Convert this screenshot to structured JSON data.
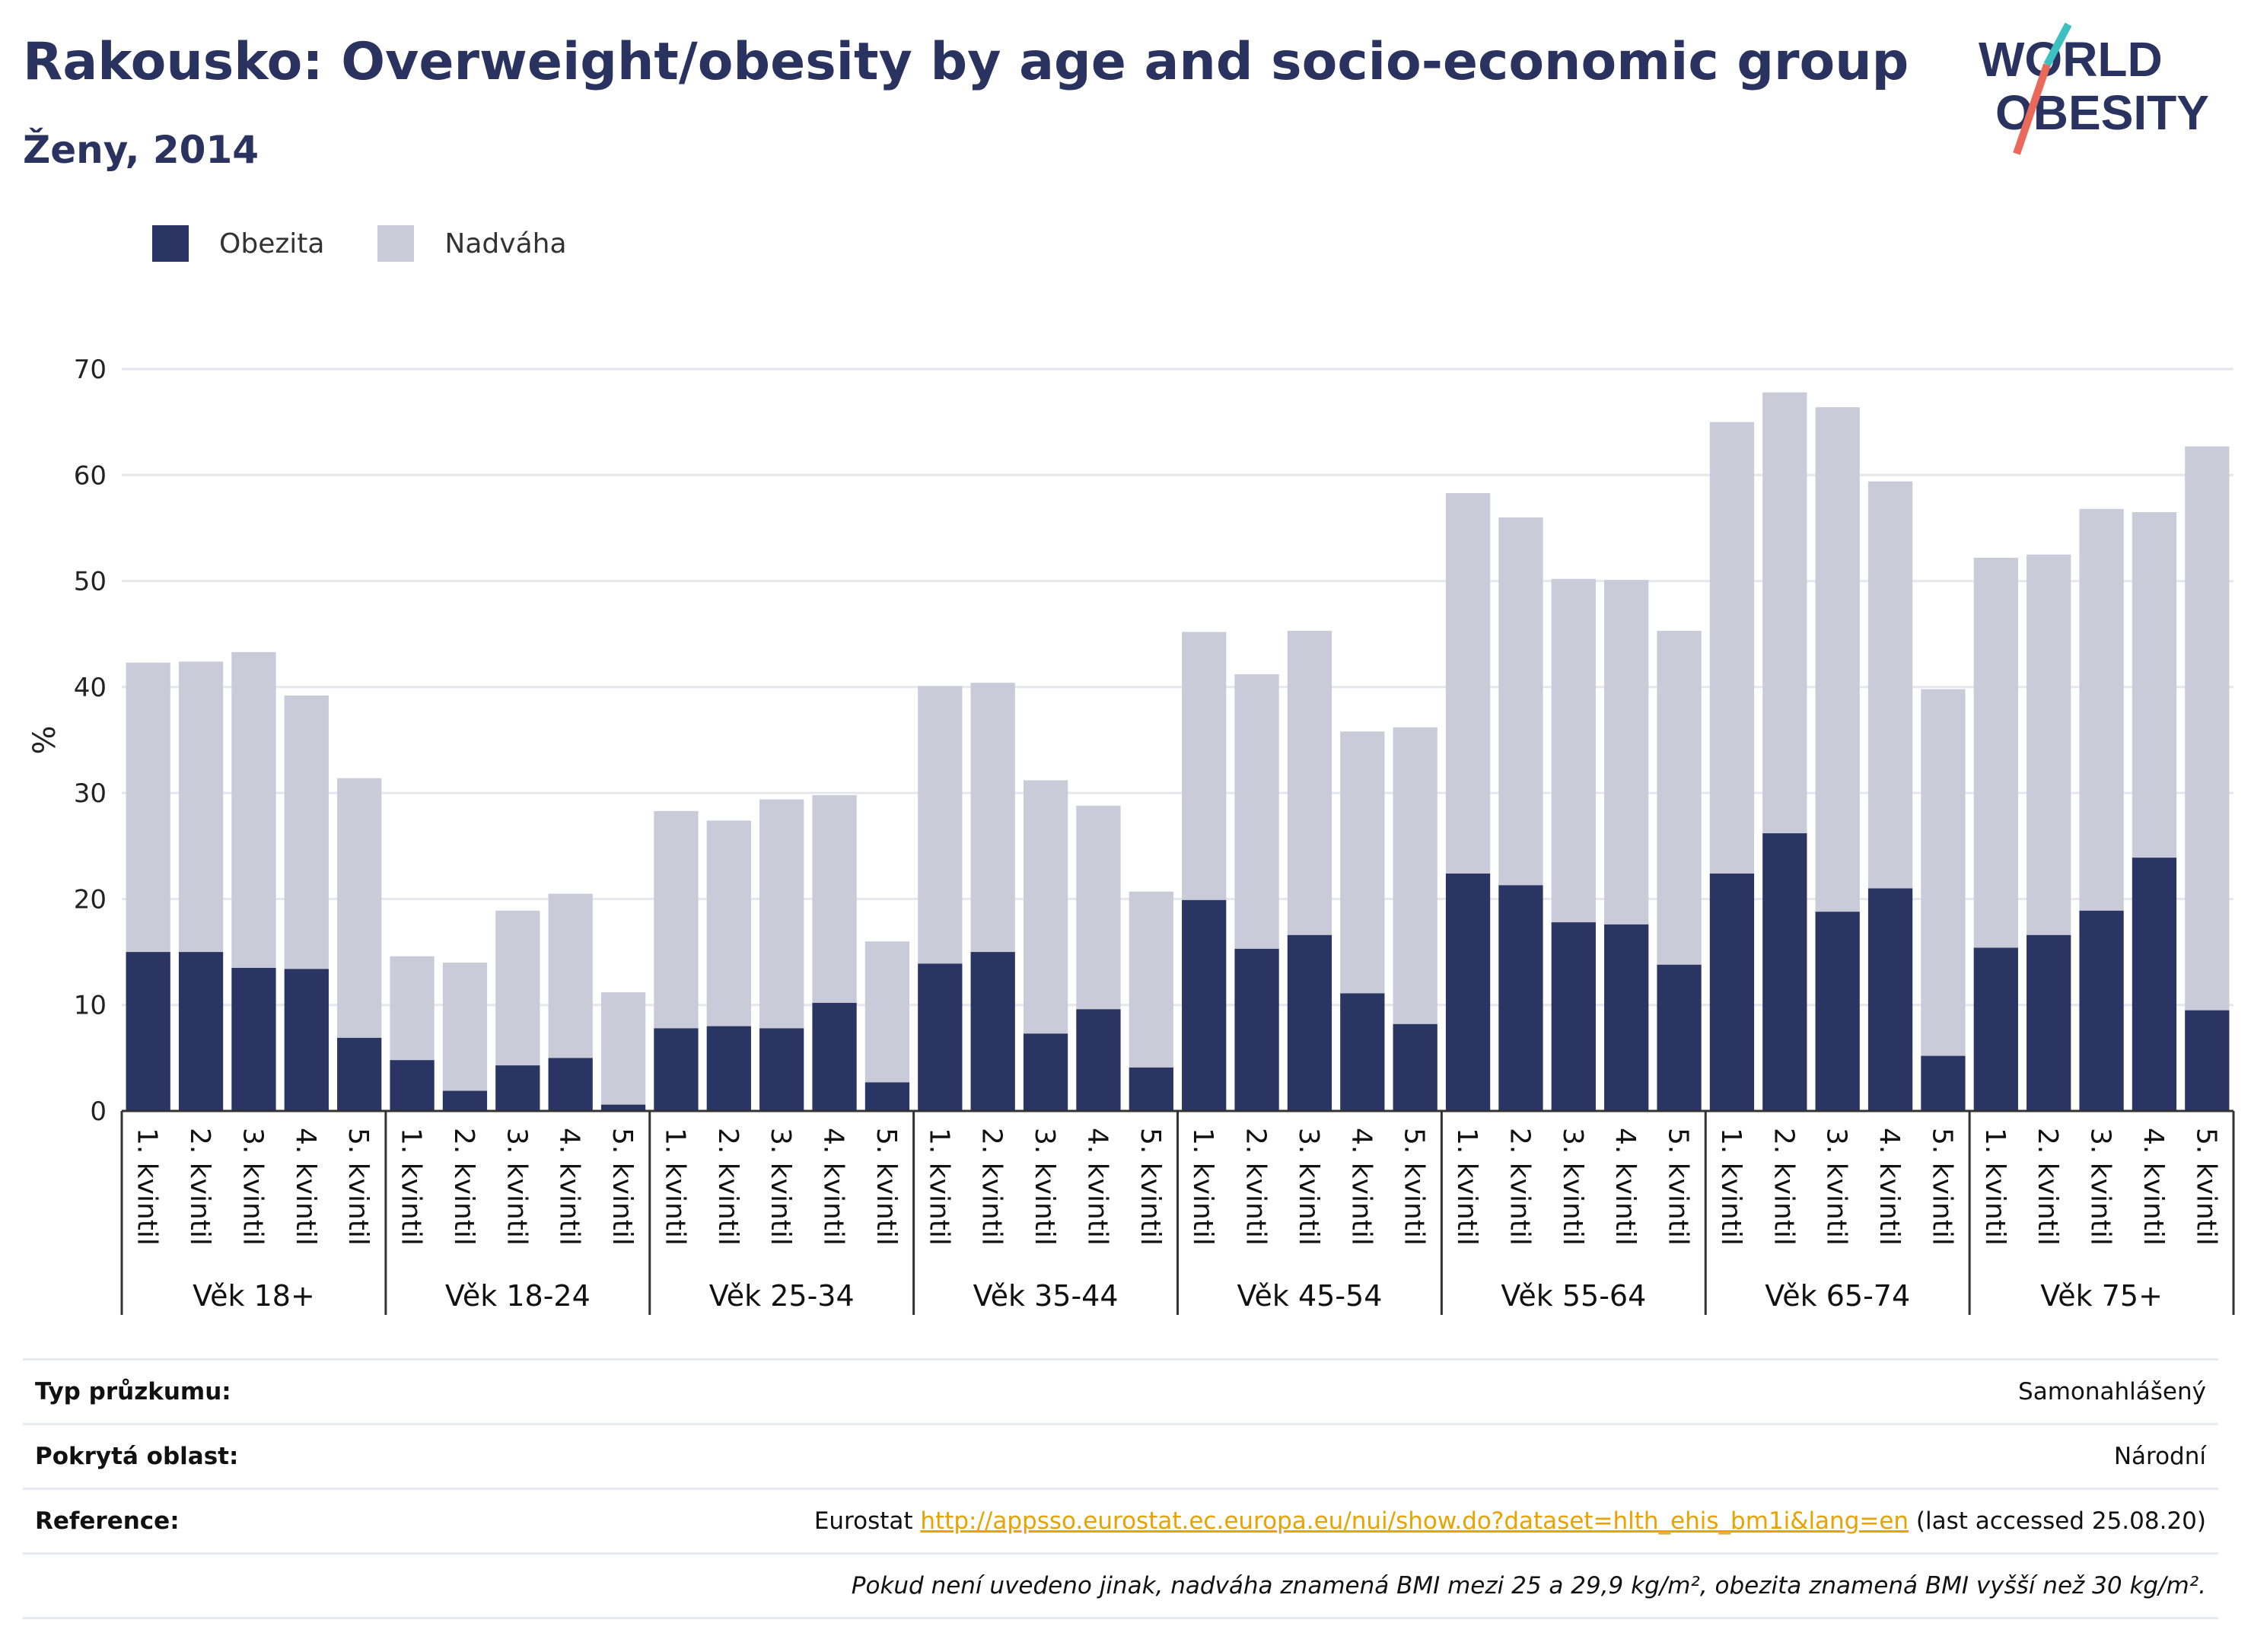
{
  "title": "Rakousko: Overweight/obesity by age and socio-economic group",
  "subtitle": "Ženy, 2014",
  "logo": {
    "line1": "WORLD",
    "line2": "OBESITY"
  },
  "colors": {
    "obesity": "#2a3563",
    "overweight": "#c9cbd8",
    "title": "#2a335f",
    "accent_teal": "#3cc1c0",
    "accent_red": "#e96a5a",
    "link": "#e8a300"
  },
  "legend": [
    {
      "label": "Obezita",
      "color": "#2a3563"
    },
    {
      "label": "Nadváha",
      "color": "#c9cbd8"
    }
  ],
  "chart_data": {
    "type": "bar",
    "stacked": true,
    "ylabel": "%",
    "ylim": [
      0,
      70
    ],
    "yticks": [
      0,
      10,
      20,
      30,
      40,
      50,
      60,
      70
    ],
    "grid": true,
    "legend_position": "top-left",
    "groups": [
      "Věk 18+",
      "Věk 18-24",
      "Věk 25-34",
      "Věk 35-44",
      "Věk 45-54",
      "Věk 55-64",
      "Věk 65-74",
      "Věk 75+"
    ],
    "categories": [
      "1. kvintil",
      "2. kvintil",
      "3. kvintil",
      "4. kvintil",
      "5. kvintil"
    ],
    "series": [
      {
        "name": "Obezita",
        "values": [
          [
            15.0,
            15.0,
            13.5,
            13.4,
            6.9
          ],
          [
            4.8,
            1.9,
            4.3,
            5.0,
            0.6
          ],
          [
            7.8,
            8.0,
            7.8,
            10.2,
            2.7
          ],
          [
            13.9,
            15.0,
            7.3,
            9.6,
            4.1
          ],
          [
            19.9,
            15.3,
            16.6,
            11.1,
            8.2
          ],
          [
            22.4,
            21.3,
            17.8,
            17.6,
            13.8
          ],
          [
            22.4,
            26.2,
            18.8,
            21.0,
            5.2
          ],
          [
            15.4,
            16.6,
            18.9,
            23.9,
            9.5
          ]
        ]
      },
      {
        "name": "Nadváha",
        "values": [
          [
            27.3,
            27.4,
            29.8,
            25.8,
            24.5
          ],
          [
            9.8,
            12.1,
            14.6,
            15.5,
            10.6
          ],
          [
            20.5,
            19.4,
            21.6,
            19.6,
            13.3
          ],
          [
            26.2,
            25.4,
            23.9,
            19.2,
            16.6
          ],
          [
            25.3,
            25.9,
            28.7,
            24.7,
            28.0
          ],
          [
            35.9,
            34.7,
            32.4,
            32.5,
            31.5
          ],
          [
            42.6,
            41.6,
            47.6,
            38.4,
            34.6
          ],
          [
            36.8,
            35.9,
            37.9,
            32.6,
            53.2
          ]
        ]
      }
    ]
  },
  "info": {
    "survey_label": "Typ průzkumu:",
    "survey_value": "Samonahlášený",
    "coverage_label": "Pokrytá oblast:",
    "coverage_value": "Národní",
    "reference_label": "Reference:",
    "reference_prefix": "Eurostat ",
    "reference_link": "http://appsso.eurostat.ec.europa.eu/nui/show.do?dataset=hlth_ehis_bm1i&lang=en",
    "reference_suffix": " (last accessed 25.08.20)",
    "note": "Pokud není uvedeno jinak, nadváha znamená BMI mezi 25 a 29,9 kg/m², obezita znamená BMI vyšší než 30 kg/m²."
  }
}
